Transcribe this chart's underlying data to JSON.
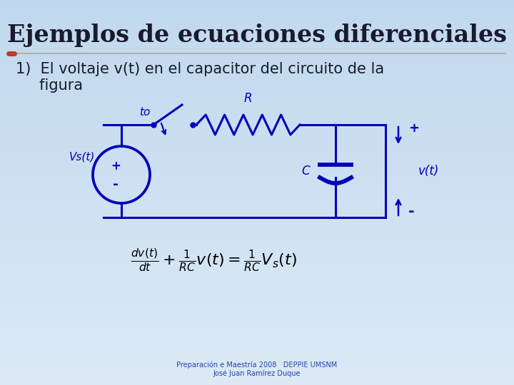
{
  "title": "Ejemplos de ecuaciones diferenciales",
  "title_fontsize": 24,
  "title_color": "#1a1a2e",
  "bg_color_top": "#dce9f5",
  "bg_color_bottom": "#c5ddf0",
  "separator_color": "#b0b0b0",
  "dot_color": "#c0392b",
  "text_line1": "1)  El voltaje v(t) en el capacitor del circuito de la",
  "text_line2": "     figura",
  "text_color": "#1a1a2e",
  "text_fontsize": 15,
  "circuit_color": "#0000bb",
  "circuit_lw": 2.2,
  "label_Vs": "Vs(t)",
  "label_R": "R",
  "label_C": "C",
  "label_to": "to",
  "label_vt": "v(t)",
  "formula_fontsize": 16,
  "footer_line1": "Preparación e Maestría 2008   DEPPIE UMSNM",
  "footer_line2": "José Juan Ramírez Duque",
  "footer_color": "#2244aa",
  "footer_fontsize": 7
}
